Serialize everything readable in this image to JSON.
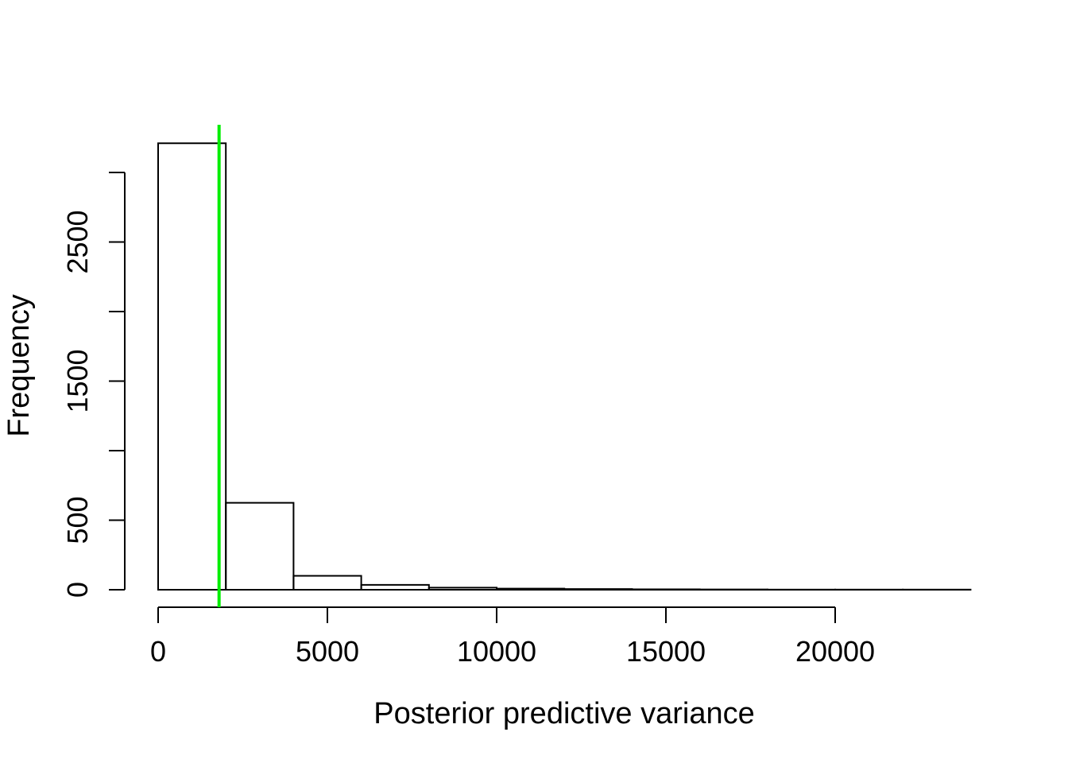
{
  "chart_data": {
    "type": "histogram",
    "title": "",
    "xlabel": "Posterior predictive variance",
    "ylabel": "Frequency",
    "bin_edges": [
      0,
      2000,
      4000,
      6000,
      8000,
      10000,
      12000,
      14000,
      16000,
      18000,
      20000,
      22000,
      24000
    ],
    "counts": [
      3210,
      625,
      100,
      35,
      15,
      8,
      5,
      3,
      2,
      1,
      1,
      1
    ],
    "x_ticks": [
      0,
      5000,
      10000,
      15000,
      20000
    ],
    "y_ticks": [
      0,
      500,
      1000,
      1500,
      2000,
      2500,
      3000
    ],
    "y_tick_labels": [
      "0",
      "500",
      "",
      "1500",
      "",
      "2500",
      ""
    ],
    "xlim": [
      0,
      24000
    ],
    "ylim": [
      0,
      3000
    ],
    "grid": false,
    "reference_line": {
      "x": 1800,
      "color": "#00ee00"
    }
  }
}
